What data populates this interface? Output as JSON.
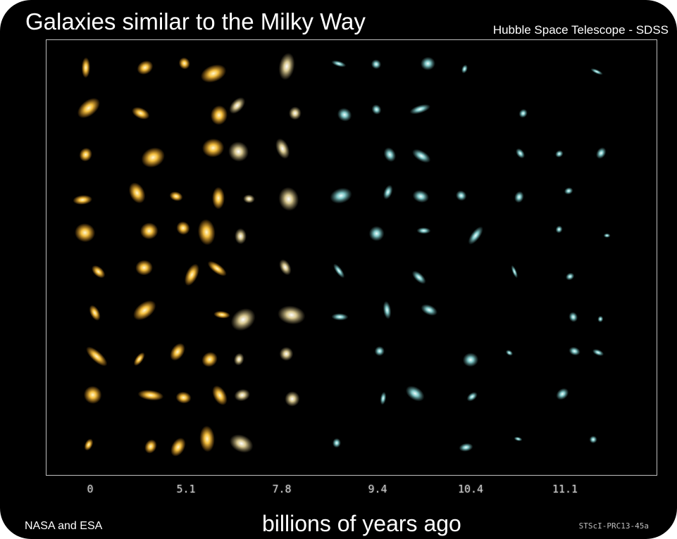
{
  "title": "Galaxies similar to the Milky Way",
  "credit_top": "Hubble Space Telescope - SDSS",
  "credit_bottom_left": "NASA and ESA",
  "credit_bottom_right": "STScI-PRC13-45a",
  "xlabel": "billions of years ago",
  "x_ticks": [
    "0",
    "5.1",
    "7.8",
    "9.4",
    "10.4",
    "11.1"
  ],
  "colors": {
    "background": "#000000",
    "frame_border": "#bfbfbf",
    "nearby_galaxies": "#f0b030",
    "distant_galaxies": "#7fc6c6"
  },
  "galaxy_columns_count": 12
}
